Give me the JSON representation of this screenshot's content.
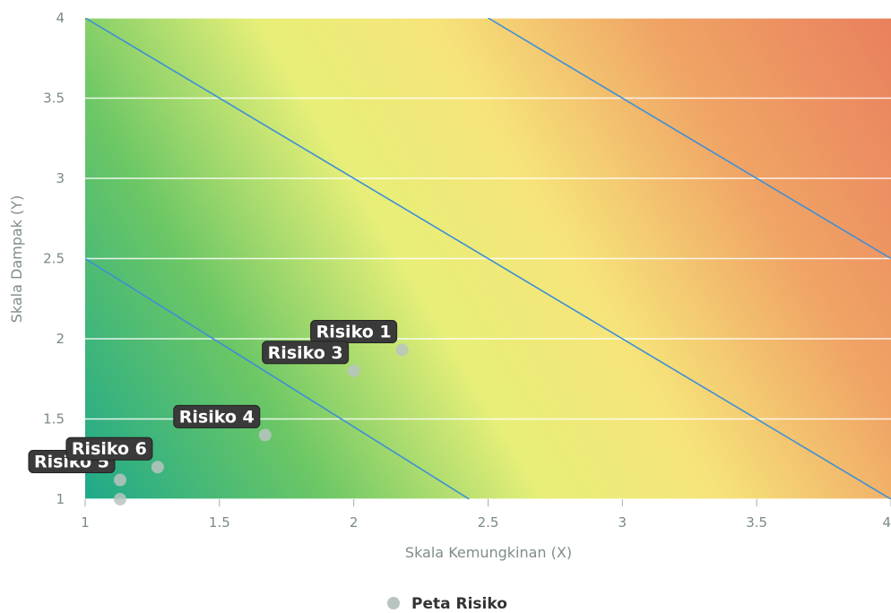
{
  "chart_data": {
    "type": "scatter",
    "xlabel": "Skala Kemungkinan (X)",
    "ylabel": "Skala Dampak (Y)",
    "xlim": [
      1,
      4
    ],
    "ylim": [
      1,
      4
    ],
    "x_ticks": [
      "1",
      "1.5",
      "2",
      "2.5",
      "3",
      "3.5",
      "4"
    ],
    "y_ticks": [
      "1",
      "1.5",
      "2",
      "2.5",
      "3",
      "3.5",
      "4"
    ],
    "grid": "horizontal",
    "background": "heatmap gradient from green (bottom-left) through yellow to orange-red (top-right)",
    "threshold_lines": [
      {
        "from": [
          1,
          2.5
        ],
        "to": [
          2.43,
          1
        ]
      },
      {
        "from": [
          1,
          4
        ],
        "to": [
          4,
          1
        ]
      },
      {
        "from": [
          2.5,
          4
        ],
        "to": [
          4,
          2.5
        ]
      }
    ],
    "series": [
      {
        "name": "Peta Risiko",
        "color": "#b9c4c1",
        "points": [
          {
            "label": "Risiko 1",
            "x": 2.18,
            "y": 1.93
          },
          {
            "label": "Risiko 3",
            "x": 2.0,
            "y": 1.8
          },
          {
            "label": "Risiko 4",
            "x": 1.67,
            "y": 1.4
          },
          {
            "label": "Risiko 5",
            "x": 1.13,
            "y": 1.12
          },
          {
            "label": "Risiko 6",
            "x": 1.27,
            "y": 1.2
          },
          {
            "label": "",
            "x": 1.13,
            "y": 1.0
          }
        ]
      }
    ],
    "legend": {
      "position": "bottom-center",
      "entries": [
        "Peta Risiko"
      ]
    }
  }
}
